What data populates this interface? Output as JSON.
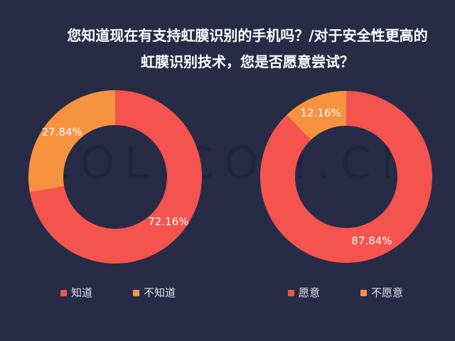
{
  "header": {
    "title_line1": "您知道现在有支持虹膜识别的手机吗？/对于安全性更高的",
    "title_line2": "虹膜识别技术，您是否愿意尝试？"
  },
  "watermark": "ZOL.COM.CN",
  "colors": {
    "background": "#272B46",
    "red": "#F4534E",
    "orange": "#F7923F",
    "title_text": "#FFFFFF",
    "slice_label_text": "#FFFFFF",
    "legend_text": "#E4E4E6",
    "watermark_text": "#21253C"
  },
  "chart_data": [
    {
      "type": "pie",
      "name": "iris-awareness-donut",
      "donut": true,
      "start_angle_deg": 0,
      "direction": "clockwise",
      "slices": [
        {
          "label": "知道",
          "value": 72.16,
          "display": "72.16%",
          "color": "#F4534E"
        },
        {
          "label": "不知道",
          "value": 27.84,
          "display": "27.84%",
          "color": "#F7923F"
        }
      ]
    },
    {
      "type": "pie",
      "name": "iris-willingness-donut",
      "donut": true,
      "start_angle_deg": 0,
      "direction": "clockwise",
      "slices": [
        {
          "label": "愿意",
          "value": 87.84,
          "display": "87.84%",
          "color": "#F4534E"
        },
        {
          "label": "不愿意",
          "value": 12.16,
          "display": "12.16%",
          "color": "#F7923F"
        }
      ]
    }
  ]
}
